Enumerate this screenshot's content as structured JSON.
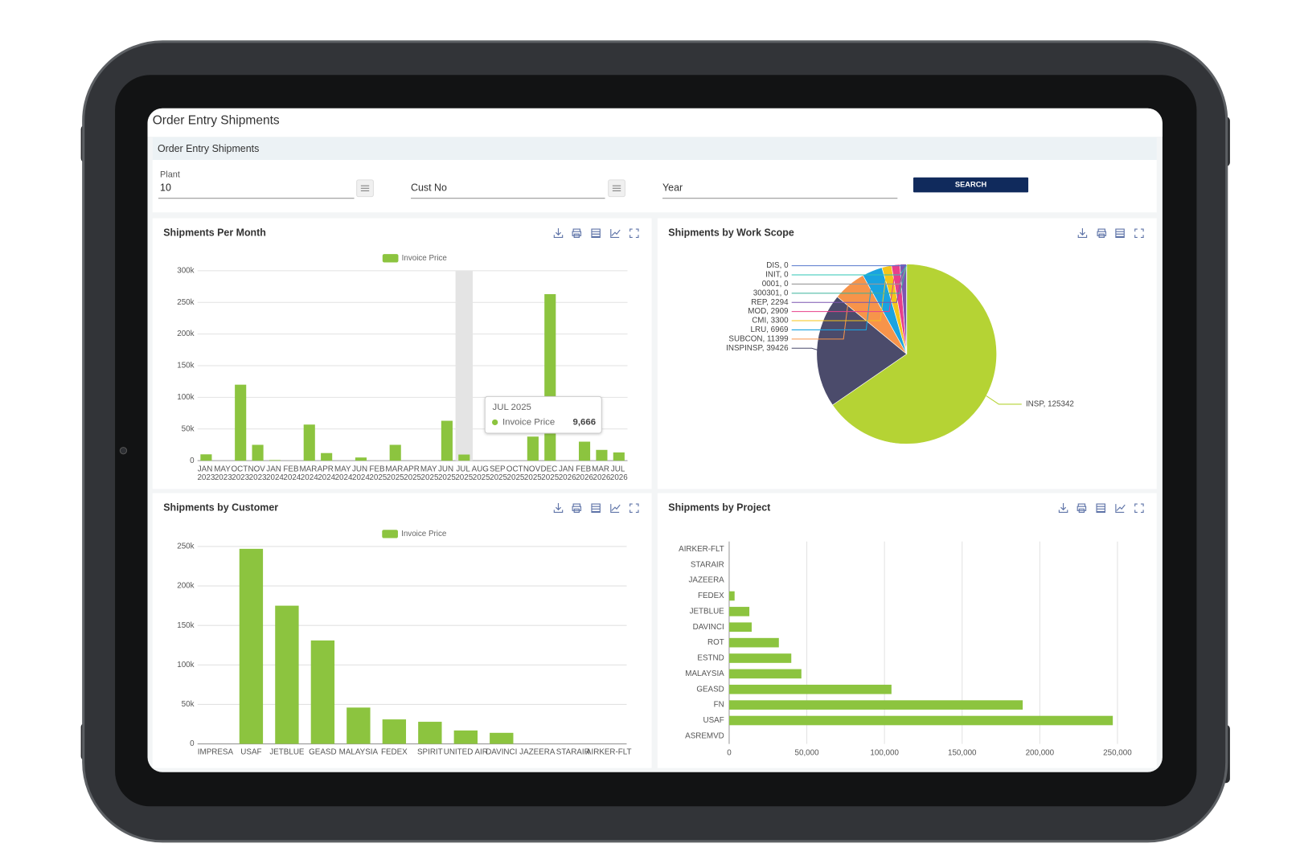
{
  "header": {
    "title": "Order Entry Shipments"
  },
  "panel": {
    "title": "Order Entry Shipments"
  },
  "filters": {
    "plant": {
      "label": "Plant",
      "value": "10"
    },
    "cust_no": {
      "label": "Cust No"
    },
    "year": {
      "label": "Year"
    },
    "button": "SEARCH"
  },
  "chart_data": [
    {
      "type": "bar",
      "title": "Shipments Per Month",
      "categories": [
        "JAN 2023",
        "MAY 2023",
        "OCT 2023",
        "NOV 2023",
        "JAN 2024",
        "FEB 2024",
        "MAR 2024",
        "APR 2024",
        "MAY 2024",
        "JUN 2024",
        "FEB 2025",
        "MAR 2025",
        "APR 2025",
        "MAY 2025",
        "JUN 2025",
        "JUL 2025",
        "AUG 2025",
        "SEP 2025",
        "OCT 2025",
        "NOV 2025",
        "DEC 2025",
        "JAN 2026",
        "FEB 2026",
        "MAR 2026",
        "JUL 2026"
      ],
      "series": [
        {
          "name": "Invoice Price",
          "color": "#8cc43f",
          "values": [
            10000,
            0,
            120000,
            25000,
            1000,
            0,
            57000,
            12000,
            0,
            5000,
            0,
            25000,
            0,
            0,
            63000,
            9666,
            0,
            0,
            0,
            38000,
            263000,
            0,
            30000,
            17000,
            13000
          ]
        }
      ],
      "ylim": [
        0,
        300000
      ],
      "yticks": [
        0,
        {
          "value": 50000,
          "label": "50k"
        },
        {
          "value": 100000,
          "label": "100k"
        },
        {
          "value": 150000,
          "label": "150k"
        },
        {
          "value": 200000,
          "label": "200k"
        },
        {
          "value": 250000,
          "label": "250k"
        },
        {
          "value": 300000,
          "label": "300k"
        }
      ],
      "grid": true,
      "legend": "top",
      "tooltip": {
        "title": "JUL 2025",
        "series": "Invoice Price",
        "value": "9,666"
      }
    },
    {
      "type": "pie",
      "title": "Shipments by Work Scope",
      "categories": [
        "INSP",
        "INSPINSP",
        "SUBCON",
        "LRU",
        "CMI",
        "MOD",
        "REP",
        "300301",
        "0001",
        "INIT",
        "DIS"
      ],
      "values": [
        125342,
        39426,
        11399,
        6969,
        3300,
        2909,
        2294,
        0,
        0,
        0,
        0
      ],
      "value_labels": [
        "INSP, 125342",
        "INSPINSP, 39426",
        "SUBCON, 11399",
        "LRU, 6969",
        "CMI, 3300",
        "MOD, 2909",
        "REP, 2294",
        "300301, 0",
        "0001, 0",
        "INIT, 0",
        "DIS, 0"
      ],
      "colors": [
        "#b5d334",
        "#4b4b6b",
        "#f7944a",
        "#1aa3e0",
        "#f4c51a",
        "#e8408a",
        "#7c55b0",
        "#3bb39a",
        "#999999",
        "#2ec4b6",
        "#5577cc"
      ]
    },
    {
      "type": "bar",
      "title": "Shipments by Customer",
      "categories": [
        "IMPRESA",
        "USAF",
        "JETBLUE",
        "GEASD",
        "MALAYSIA",
        "FEDEX",
        "SPIRIT",
        "UNITED AIR",
        "DAVINCI",
        "JAZEERA",
        "STARAIR",
        "AIRKER-FLT"
      ],
      "series": [
        {
          "name": "Invoice Price",
          "color": "#8cc43f",
          "values": [
            0,
            247000,
            175000,
            131000,
            46000,
            31000,
            28000,
            17000,
            14000,
            0,
            0,
            0
          ]
        }
      ],
      "ylim": [
        0,
        250000
      ],
      "yticks": [
        0,
        {
          "value": 50000,
          "label": "50k"
        },
        {
          "value": 100000,
          "label": "100k"
        },
        {
          "value": 150000,
          "label": "150k"
        },
        {
          "value": 200000,
          "label": "200k"
        },
        {
          "value": 250000,
          "label": "250k"
        }
      ],
      "grid": true,
      "legend": "top"
    },
    {
      "type": "hbar",
      "title": "Shipments by Project",
      "categories": [
        "AIRKER-FLT",
        "STARAIR",
        "JAZEERA",
        "FEDEX",
        "JETBLUE",
        "DAVINCI",
        "ROT",
        "ESTND",
        "MALAYSIA",
        "GEASD",
        "FN",
        "USAF",
        "ASREMVD"
      ],
      "values": [
        0,
        0,
        0,
        3500,
        13000,
        14500,
        32000,
        40000,
        46500,
        104500,
        189000,
        247000,
        0
      ],
      "color": "#8cc43f",
      "xlim": [
        0,
        250000
      ],
      "xticks": [
        0,
        {
          "value": 50000,
          "label": "50,000"
        },
        {
          "value": 100000,
          "label": "100,000"
        },
        {
          "value": 150000,
          "label": "150,000"
        },
        {
          "value": 200000,
          "label": "200,000"
        },
        {
          "value": 250000,
          "label": "250,000"
        }
      ],
      "grid": true
    }
  ]
}
